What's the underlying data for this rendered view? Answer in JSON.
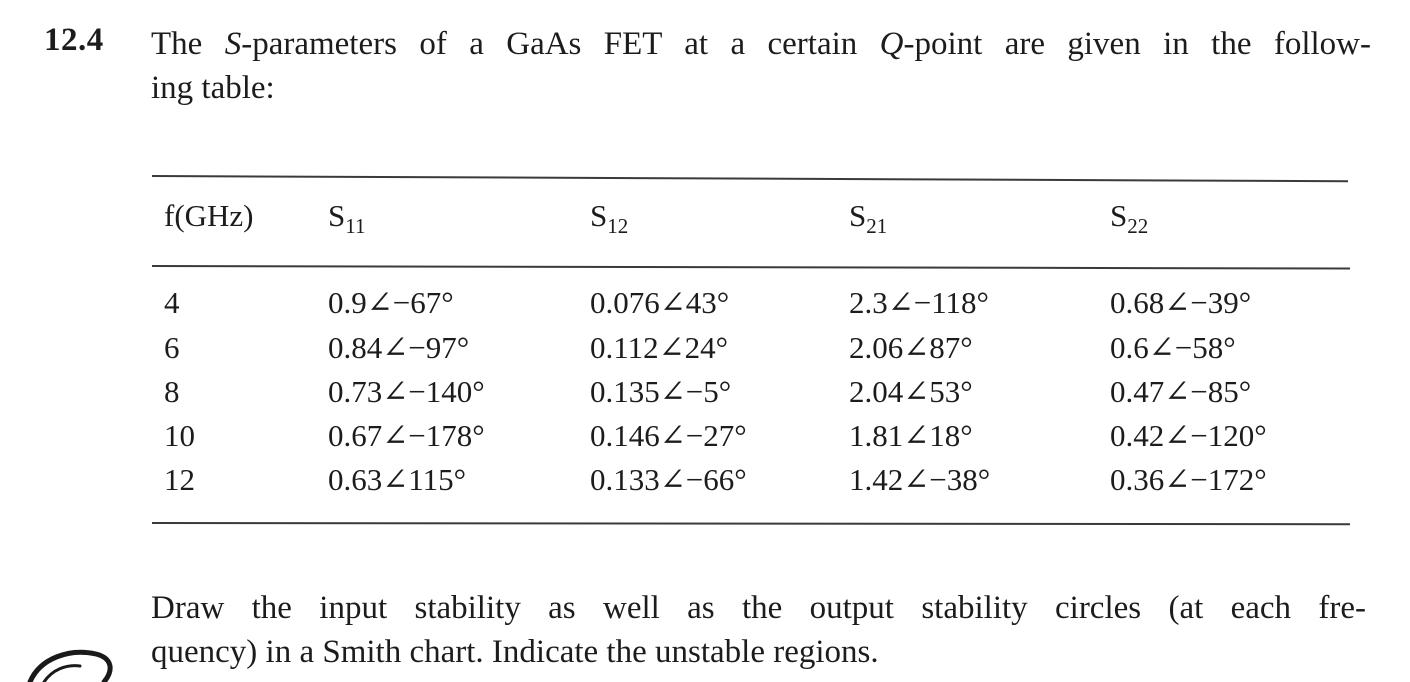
{
  "problem": {
    "number": "12.4",
    "line1_a": "The ",
    "line1_var": "S",
    "line1_b": "-parameters of a GaAs FET at a certain ",
    "line1_q": "Q",
    "line1_c": "-point are given in the follow-",
    "line2": "ing table:"
  },
  "table": {
    "headers": {
      "f": "f(GHz)",
      "s11_base": "S",
      "s11_sub": "11",
      "s12_base": "S",
      "s12_sub": "12",
      "s21_base": "S",
      "s21_sub": "21",
      "s22_base": "S",
      "s22_sub": "22"
    },
    "rows": [
      {
        "f": "4",
        "s11": "0.9∠−67°",
        "s12": "0.076∠43°",
        "s21": "2.3∠−118°",
        "s22": "0.68∠−39°"
      },
      {
        "f": "6",
        "s11": "0.84∠−97°",
        "s12": "0.112∠24°",
        "s21": "2.06∠87°",
        "s22": "0.6∠−58°"
      },
      {
        "f": "8",
        "s11": "0.73∠−140°",
        "s12": "0.135∠−5°",
        "s21": "2.04∠53°",
        "s22": "0.47∠−85°"
      },
      {
        "f": "10",
        "s11": "0.67∠−178°",
        "s12": "0.146∠−27°",
        "s21": "1.81∠18°",
        "s22": "0.42∠−120°"
      },
      {
        "f": "12",
        "s11": "0.63∠115°",
        "s12": "0.133∠−66°",
        "s21": "1.42∠−38°",
        "s22": "0.36∠−172°"
      }
    ]
  },
  "footer": {
    "line1": "Draw the input stability as well as the output stability circles (at each fre-",
    "line2": "quency) in a Smith chart. Indicate the unstable regions."
  }
}
